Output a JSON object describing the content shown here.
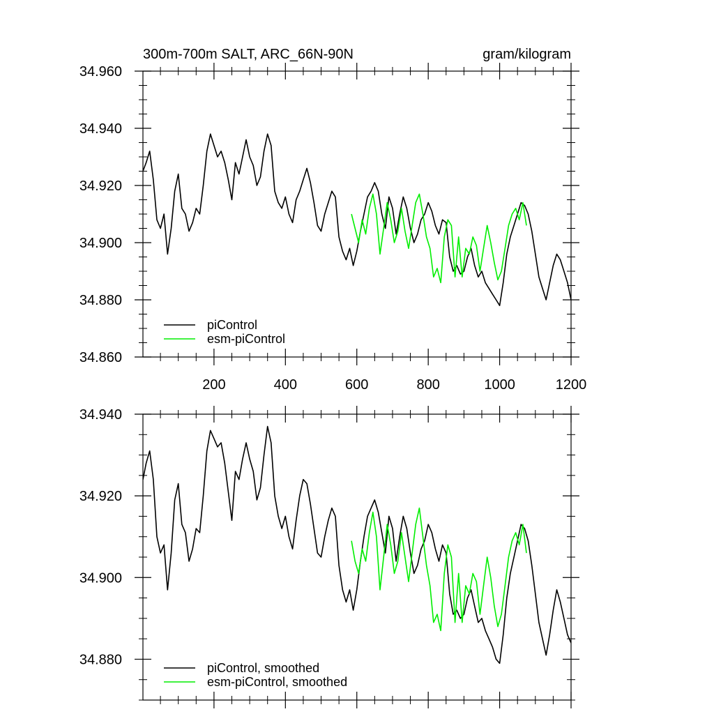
{
  "chart_data": [
    {
      "type": "line",
      "title_left": "300m-700m SALT, ARC_66N-90N",
      "title_right": "gram/kilogram",
      "xlabel": "",
      "ylabel": "",
      "xlim": [
        1,
        1200
      ],
      "ylim": [
        34.86,
        34.96
      ],
      "x_ticks": [
        200,
        400,
        600,
        800,
        1000,
        1200
      ],
      "x_tick_labels": [
        "200",
        "400",
        "600",
        "800",
        "1000",
        "1200"
      ],
      "y_ticks": [
        34.86,
        34.88,
        34.9,
        34.92,
        34.94,
        34.96
      ],
      "y_tick_labels": [
        "34.860",
        "34.880",
        "34.900",
        "34.920",
        "34.940",
        "34.960"
      ],
      "legend_position": "bottom-left",
      "grid": false,
      "series": [
        {
          "name": "piControl",
          "color": "#000000",
          "x": [
            1,
            10,
            20,
            30,
            40,
            50,
            60,
            70,
            80,
            90,
            100,
            110,
            120,
            130,
            140,
            150,
            160,
            170,
            180,
            190,
            200,
            210,
            220,
            230,
            240,
            250,
            260,
            270,
            280,
            290,
            300,
            310,
            320,
            330,
            340,
            350,
            360,
            370,
            380,
            390,
            400,
            410,
            420,
            430,
            440,
            450,
            460,
            470,
            480,
            490,
            500,
            510,
            520,
            530,
            540,
            550,
            560,
            570,
            580,
            590,
            600,
            610,
            620,
            630,
            640,
            650,
            660,
            670,
            680,
            690,
            700,
            710,
            720,
            730,
            740,
            750,
            760,
            770,
            780,
            790,
            800,
            810,
            820,
            830,
            840,
            850,
            860,
            870,
            880,
            890,
            900,
            910,
            920,
            930,
            940,
            950,
            960,
            970,
            980,
            990,
            1000,
            1010,
            1020,
            1030,
            1040,
            1050,
            1060,
            1070,
            1080,
            1090,
            1100,
            1110,
            1120,
            1130,
            1140,
            1150,
            1160,
            1170,
            1180,
            1190,
            1200
          ],
          "values": [
            34.925,
            34.928,
            34.932,
            34.922,
            34.908,
            34.905,
            34.91,
            34.896,
            34.905,
            34.918,
            34.924,
            34.912,
            34.91,
            34.904,
            34.907,
            34.912,
            34.91,
            34.92,
            34.932,
            34.938,
            34.934,
            34.93,
            34.932,
            34.928,
            34.922,
            34.915,
            34.928,
            34.924,
            34.93,
            34.936,
            34.93,
            34.927,
            34.92,
            34.923,
            34.932,
            34.938,
            34.934,
            34.918,
            34.914,
            34.912,
            34.916,
            34.91,
            34.907,
            34.915,
            34.918,
            34.922,
            34.926,
            34.921,
            34.914,
            34.906,
            34.904,
            34.91,
            34.914,
            34.918,
            34.916,
            34.902,
            34.897,
            34.894,
            34.898,
            34.892,
            34.897,
            34.904,
            34.91,
            34.916,
            34.918,
            34.921,
            34.918,
            34.91,
            34.905,
            34.916,
            34.912,
            34.903,
            34.91,
            34.916,
            34.912,
            34.905,
            34.9,
            34.903,
            34.908,
            34.91,
            34.914,
            34.911,
            34.906,
            34.903,
            34.908,
            34.907,
            34.895,
            34.89,
            34.892,
            34.889,
            34.89,
            34.895,
            34.898,
            34.892,
            34.888,
            34.89,
            34.886,
            34.884,
            34.882,
            34.88,
            34.878,
            34.886,
            34.896,
            34.902,
            34.906,
            34.91,
            34.914,
            34.913,
            34.91,
            34.904,
            34.896,
            34.888,
            34.884,
            34.88,
            34.886,
            34.892,
            34.896,
            34.894,
            34.89,
            34.886,
            34.88
          ]
        },
        {
          "name": "esm-piControl",
          "color": "#00ee00",
          "x": [
            585,
            595,
            605,
            615,
            625,
            635,
            645,
            655,
            665,
            675,
            685,
            695,
            705,
            715,
            725,
            735,
            745,
            755,
            765,
            775,
            785,
            795,
            805,
            815,
            825,
            835,
            845,
            855,
            865,
            875,
            885,
            895,
            905,
            915,
            925,
            935,
            945,
            955,
            965,
            975,
            985,
            995,
            1005,
            1015,
            1025,
            1035,
            1045,
            1055,
            1065,
            1075
          ],
          "values": [
            34.91,
            34.905,
            34.9,
            34.908,
            34.903,
            34.912,
            34.917,
            34.91,
            34.896,
            34.905,
            34.914,
            34.908,
            34.9,
            34.904,
            34.912,
            34.904,
            34.898,
            34.906,
            34.914,
            34.917,
            34.91,
            34.902,
            34.898,
            34.888,
            34.891,
            34.886,
            34.902,
            34.908,
            34.906,
            34.888,
            34.902,
            34.888,
            34.898,
            34.896,
            34.902,
            34.899,
            34.89,
            34.898,
            34.906,
            34.9,
            34.893,
            34.887,
            34.89,
            34.898,
            34.906,
            34.91,
            34.912,
            34.908,
            34.914,
            34.906
          ]
        }
      ]
    },
    {
      "type": "line",
      "title_left": "",
      "title_right": "",
      "xlabel": "",
      "ylabel": "",
      "xlim": [
        1,
        1200
      ],
      "ylim": [
        34.87,
        34.94
      ],
      "x_ticks": [
        200,
        400,
        600,
        800,
        1000,
        1200
      ],
      "x_tick_labels": [],
      "y_ticks": [
        34.88,
        34.9,
        34.92,
        34.94
      ],
      "y_tick_labels": [
        "34.880",
        "34.900",
        "34.920",
        "34.940"
      ],
      "legend_position": "bottom-left",
      "grid": false,
      "series": [
        {
          "name": "piControl, smoothed",
          "color": "#000000",
          "x": [
            1,
            10,
            20,
            30,
            40,
            50,
            60,
            70,
            80,
            90,
            100,
            110,
            120,
            130,
            140,
            150,
            160,
            170,
            180,
            190,
            200,
            210,
            220,
            230,
            240,
            250,
            260,
            270,
            280,
            290,
            300,
            310,
            320,
            330,
            340,
            350,
            360,
            370,
            380,
            390,
            400,
            410,
            420,
            430,
            440,
            450,
            460,
            470,
            480,
            490,
            500,
            510,
            520,
            530,
            540,
            550,
            560,
            570,
            580,
            590,
            600,
            610,
            620,
            630,
            640,
            650,
            660,
            670,
            680,
            690,
            700,
            710,
            720,
            730,
            740,
            750,
            760,
            770,
            780,
            790,
            800,
            810,
            820,
            830,
            840,
            850,
            860,
            870,
            880,
            890,
            900,
            910,
            920,
            930,
            940,
            950,
            960,
            970,
            980,
            990,
            1000,
            1010,
            1020,
            1030,
            1040,
            1050,
            1060,
            1070,
            1080,
            1090,
            1100,
            1110,
            1120,
            1130,
            1140,
            1150,
            1160,
            1170,
            1180,
            1190,
            1200
          ],
          "values": [
            34.924,
            34.928,
            34.931,
            34.924,
            34.91,
            34.906,
            34.908,
            34.897,
            34.906,
            34.919,
            34.923,
            34.913,
            34.911,
            34.904,
            34.907,
            34.912,
            34.911,
            34.92,
            34.931,
            34.936,
            34.934,
            34.932,
            34.933,
            34.928,
            34.921,
            34.914,
            34.926,
            34.924,
            34.929,
            34.933,
            34.929,
            34.926,
            34.919,
            34.922,
            34.93,
            34.937,
            34.933,
            34.92,
            34.915,
            34.912,
            34.915,
            34.91,
            34.907,
            34.914,
            34.92,
            34.924,
            34.923,
            34.918,
            34.912,
            34.906,
            34.905,
            34.91,
            34.914,
            34.917,
            34.915,
            34.903,
            34.897,
            34.894,
            34.897,
            34.892,
            34.897,
            34.904,
            34.91,
            34.915,
            34.917,
            34.919,
            34.916,
            34.911,
            34.906,
            34.915,
            34.912,
            34.904,
            34.91,
            34.915,
            34.912,
            34.906,
            34.901,
            34.903,
            34.907,
            34.909,
            34.913,
            34.911,
            34.907,
            34.904,
            34.908,
            34.906,
            34.896,
            34.891,
            34.892,
            34.89,
            34.891,
            34.895,
            34.897,
            34.893,
            34.889,
            34.89,
            34.887,
            34.885,
            34.883,
            34.88,
            34.879,
            34.886,
            34.895,
            34.901,
            34.905,
            34.909,
            34.913,
            34.912,
            34.909,
            34.903,
            34.896,
            34.889,
            34.885,
            34.881,
            34.886,
            34.892,
            34.897,
            34.894,
            34.89,
            34.886,
            34.884
          ]
        },
        {
          "name": "esm-piControl, smoothed",
          "color": "#00ee00",
          "x": [
            585,
            595,
            605,
            615,
            625,
            635,
            645,
            655,
            665,
            675,
            685,
            695,
            705,
            715,
            725,
            735,
            745,
            755,
            765,
            775,
            785,
            795,
            805,
            815,
            825,
            835,
            845,
            855,
            865,
            875,
            885,
            895,
            905,
            915,
            925,
            935,
            945,
            955,
            965,
            975,
            985,
            995,
            1005,
            1015,
            1025,
            1035,
            1045,
            1055,
            1065,
            1075
          ],
          "values": [
            34.909,
            34.904,
            34.901,
            34.907,
            34.904,
            34.911,
            34.916,
            34.91,
            34.897,
            34.905,
            34.913,
            34.908,
            34.901,
            34.904,
            34.911,
            34.905,
            34.899,
            34.906,
            34.913,
            34.917,
            34.91,
            34.903,
            34.898,
            34.889,
            34.891,
            34.887,
            34.901,
            34.908,
            34.905,
            34.889,
            34.901,
            34.889,
            34.898,
            34.896,
            34.901,
            34.899,
            34.891,
            34.898,
            34.905,
            34.9,
            34.893,
            34.888,
            34.891,
            34.898,
            34.905,
            34.909,
            34.911,
            34.908,
            34.913,
            34.906
          ]
        }
      ]
    }
  ]
}
